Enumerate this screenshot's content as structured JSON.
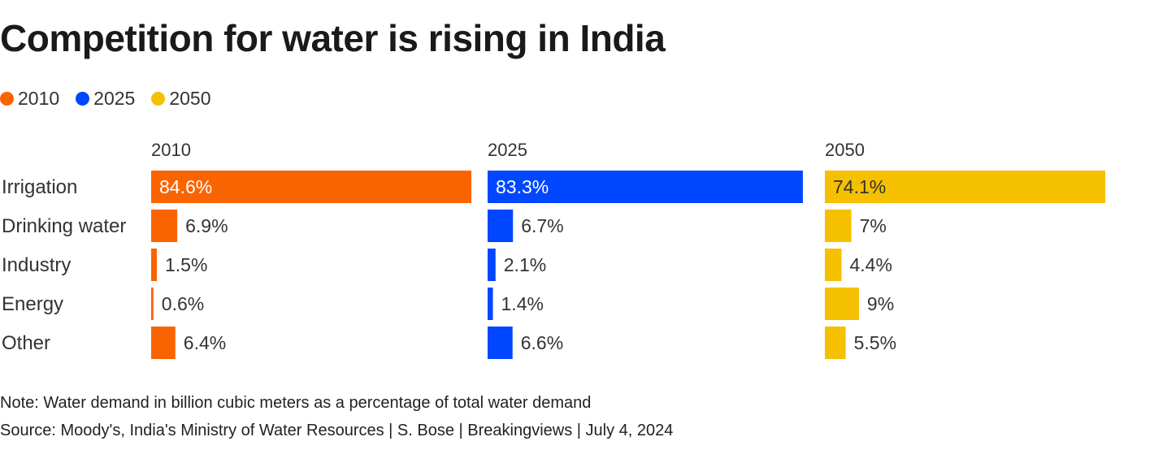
{
  "title": "Competition for water is rising in India",
  "legend": [
    {
      "label": "2010",
      "color": "#fa6400"
    },
    {
      "label": "2025",
      "color": "#0047ff"
    },
    {
      "label": "2050",
      "color": "#f5c000"
    }
  ],
  "chart_data": {
    "type": "bar",
    "orientation": "horizontal",
    "layout": "small-multiples",
    "categories": [
      "Irrigation",
      "Drinking water",
      "Industry",
      "Energy",
      "Other"
    ],
    "series": [
      {
        "name": "2010",
        "color": "#fa6400",
        "values": [
          84.6,
          6.9,
          1.5,
          0.6,
          6.4
        ],
        "labels": [
          "84.6%",
          "6.9%",
          "1.5%",
          "0.6%",
          "6.4%"
        ]
      },
      {
        "name": "2025",
        "color": "#0047ff",
        "values": [
          83.3,
          6.7,
          2.1,
          1.4,
          6.6
        ],
        "labels": [
          "83.3%",
          "6.7%",
          "2.1%",
          "1.4%",
          "6.6%"
        ]
      },
      {
        "name": "2050",
        "color": "#f5c000",
        "values": [
          74.1,
          7,
          4.4,
          9,
          5.5
        ],
        "labels": [
          "74.1%",
          "7%",
          "4.4%",
          "9%",
          "5.5%"
        ]
      }
    ],
    "unit": "%",
    "grid": false
  },
  "note": "Note: Water demand in billion cubic meters as a percentage of total water demand",
  "source": "Source: Moody's, India's Ministry of Water Resources | S. Bose | Breakingviews | July 4, 2024"
}
